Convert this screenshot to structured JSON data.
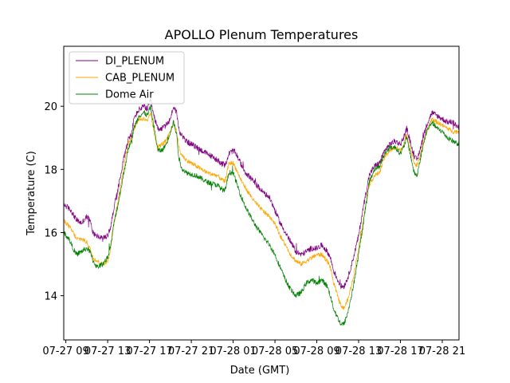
{
  "chart_data": {
    "type": "line",
    "title": "APOLLO Plenum Temperatures",
    "xlabel": "Date (GMT)",
    "ylabel": "Temperature (C)",
    "xlim": [
      8.8,
      46.6
    ],
    "ylim": [
      12.6,
      21.9
    ],
    "xticks": [
      {
        "x": 9,
        "label": "07-27 09"
      },
      {
        "x": 13,
        "label": "07-27 13"
      },
      {
        "x": 17,
        "label": "07-27 17"
      },
      {
        "x": 21,
        "label": "07-27 21"
      },
      {
        "x": 25,
        "label": "07-28 01"
      },
      {
        "x": 29,
        "label": "07-28 05"
      },
      {
        "x": 33,
        "label": "07-28 09"
      },
      {
        "x": 37,
        "label": "07-28 13"
      },
      {
        "x": 41,
        "label": "07-28 17"
      },
      {
        "x": 45,
        "label": "07-28 21"
      }
    ],
    "yticks": [
      {
        "y": 14,
        "label": "14"
      },
      {
        "y": 16,
        "label": "16"
      },
      {
        "y": 18,
        "label": "18"
      },
      {
        "y": 20,
        "label": "20"
      }
    ],
    "legend_position": "top-left",
    "series": [
      {
        "name": "DI_PLENUM",
        "color": "#800080",
        "noise": 0.09,
        "points": [
          [
            8.8,
            16.9
          ],
          [
            9.5,
            16.7
          ],
          [
            10.0,
            16.4
          ],
          [
            10.5,
            16.3
          ],
          [
            11.0,
            16.5
          ],
          [
            11.3,
            16.4
          ],
          [
            11.6,
            16.0
          ],
          [
            12.0,
            15.9
          ],
          [
            12.5,
            15.8
          ],
          [
            13.0,
            15.9
          ],
          [
            13.3,
            16.2
          ],
          [
            13.6,
            16.8
          ],
          [
            14.0,
            17.4
          ],
          [
            14.5,
            18.3
          ],
          [
            15.0,
            19.0
          ],
          [
            15.3,
            19.1
          ],
          [
            15.5,
            19.6
          ],
          [
            16.0,
            19.9
          ],
          [
            16.5,
            20.0
          ],
          [
            16.8,
            19.9
          ],
          [
            17.1,
            20.2
          ],
          [
            17.4,
            19.7
          ],
          [
            17.8,
            19.3
          ],
          [
            18.2,
            19.3
          ],
          [
            18.6,
            19.4
          ],
          [
            19.0,
            19.6
          ],
          [
            19.3,
            20.0
          ],
          [
            19.6,
            19.8
          ],
          [
            19.8,
            19.3
          ],
          [
            20.0,
            19.1
          ],
          [
            20.5,
            18.9
          ],
          [
            21.5,
            18.7
          ],
          [
            22.5,
            18.5
          ],
          [
            23.5,
            18.3
          ],
          [
            24.2,
            18.1
          ],
          [
            24.6,
            18.5
          ],
          [
            25.0,
            18.6
          ],
          [
            25.3,
            18.5
          ],
          [
            25.7,
            18.2
          ],
          [
            26.2,
            17.9
          ],
          [
            27.0,
            17.6
          ],
          [
            27.8,
            17.3
          ],
          [
            28.5,
            17.1
          ],
          [
            29.0,
            16.7
          ],
          [
            29.5,
            16.3
          ],
          [
            30.0,
            16.0
          ],
          [
            30.5,
            15.7
          ],
          [
            31.0,
            15.4
          ],
          [
            31.5,
            15.3
          ],
          [
            32.0,
            15.4
          ],
          [
            32.5,
            15.5
          ],
          [
            33.0,
            15.5
          ],
          [
            33.5,
            15.6
          ],
          [
            34.0,
            15.4
          ],
          [
            34.3,
            15.2
          ],
          [
            34.6,
            14.8
          ],
          [
            35.0,
            14.5
          ],
          [
            35.3,
            14.3
          ],
          [
            35.6,
            14.3
          ],
          [
            36.0,
            14.6
          ],
          [
            36.5,
            15.2
          ],
          [
            37.0,
            15.9
          ],
          [
            37.5,
            16.9
          ],
          [
            38.0,
            17.8
          ],
          [
            38.5,
            18.1
          ],
          [
            39.0,
            18.2
          ],
          [
            39.5,
            18.6
          ],
          [
            40.0,
            18.8
          ],
          [
            40.5,
            18.9
          ],
          [
            41.0,
            18.8
          ],
          [
            41.3,
            19.0
          ],
          [
            41.6,
            19.3
          ],
          [
            42.0,
            18.8
          ],
          [
            42.3,
            18.4
          ],
          [
            42.6,
            18.3
          ],
          [
            43.0,
            18.8
          ],
          [
            43.5,
            19.4
          ],
          [
            44.0,
            19.8
          ],
          [
            44.5,
            19.7
          ],
          [
            45.0,
            19.6
          ],
          [
            45.5,
            19.5
          ],
          [
            46.0,
            19.5
          ],
          [
            46.6,
            19.3
          ]
        ]
      },
      {
        "name": "CAB_PLENUM",
        "color": "#ffa500",
        "noise": 0.07,
        "points": [
          [
            8.8,
            16.4
          ],
          [
            9.3,
            16.2
          ],
          [
            9.7,
            16.0
          ],
          [
            10.0,
            15.8
          ],
          [
            10.5,
            15.8
          ],
          [
            11.0,
            15.7
          ],
          [
            11.3,
            15.5
          ],
          [
            11.6,
            15.2
          ],
          [
            12.0,
            15.1
          ],
          [
            12.5,
            15.0
          ],
          [
            13.0,
            15.1
          ],
          [
            13.3,
            15.5
          ],
          [
            13.6,
            16.3
          ],
          [
            14.0,
            17.0
          ],
          [
            14.5,
            18.0
          ],
          [
            15.0,
            18.9
          ],
          [
            15.3,
            19.0
          ],
          [
            15.5,
            19.3
          ],
          [
            16.0,
            19.6
          ],
          [
            16.5,
            19.6
          ],
          [
            16.8,
            19.5
          ],
          [
            17.1,
            19.8
          ],
          [
            17.4,
            19.2
          ],
          [
            17.8,
            18.7
          ],
          [
            18.2,
            18.8
          ],
          [
            18.6,
            18.9
          ],
          [
            19.0,
            19.2
          ],
          [
            19.3,
            19.5
          ],
          [
            19.6,
            19.2
          ],
          [
            19.8,
            18.7
          ],
          [
            20.0,
            18.5
          ],
          [
            20.5,
            18.3
          ],
          [
            21.5,
            18.1
          ],
          [
            22.5,
            17.9
          ],
          [
            23.5,
            17.8
          ],
          [
            24.2,
            17.6
          ],
          [
            24.6,
            18.2
          ],
          [
            25.0,
            18.2
          ],
          [
            25.3,
            18.0
          ],
          [
            25.7,
            17.7
          ],
          [
            26.2,
            17.4
          ],
          [
            27.0,
            17.0
          ],
          [
            27.8,
            16.7
          ],
          [
            28.5,
            16.5
          ],
          [
            29.0,
            16.3
          ],
          [
            29.5,
            15.9
          ],
          [
            30.0,
            15.6
          ],
          [
            30.5,
            15.3
          ],
          [
            31.0,
            15.1
          ],
          [
            31.5,
            15.0
          ],
          [
            32.0,
            15.1
          ],
          [
            32.5,
            15.2
          ],
          [
            33.0,
            15.3
          ],
          [
            33.5,
            15.3
          ],
          [
            34.0,
            15.1
          ],
          [
            34.3,
            14.9
          ],
          [
            34.6,
            14.4
          ],
          [
            35.0,
            14.0
          ],
          [
            35.3,
            13.7
          ],
          [
            35.6,
            13.6
          ],
          [
            36.0,
            13.9
          ],
          [
            36.5,
            14.6
          ],
          [
            37.0,
            15.5
          ],
          [
            37.5,
            16.5
          ],
          [
            38.0,
            17.5
          ],
          [
            38.5,
            17.8
          ],
          [
            39.0,
            17.9
          ],
          [
            39.5,
            18.4
          ],
          [
            40.0,
            18.6
          ],
          [
            40.5,
            18.7
          ],
          [
            41.0,
            18.6
          ],
          [
            41.3,
            18.8
          ],
          [
            41.6,
            19.1
          ],
          [
            42.0,
            18.6
          ],
          [
            42.3,
            18.2
          ],
          [
            42.6,
            18.1
          ],
          [
            43.0,
            18.6
          ],
          [
            43.5,
            19.2
          ],
          [
            44.0,
            19.6
          ],
          [
            44.5,
            19.5
          ],
          [
            45.0,
            19.4
          ],
          [
            45.5,
            19.3
          ],
          [
            46.0,
            19.2
          ],
          [
            46.6,
            19.2
          ]
        ]
      },
      {
        "name": "Dome Air",
        "color": "#008000",
        "noise": 0.08,
        "points": [
          [
            8.8,
            16.0
          ],
          [
            9.3,
            15.8
          ],
          [
            9.7,
            15.5
          ],
          [
            10.0,
            15.3
          ],
          [
            10.5,
            15.4
          ],
          [
            11.0,
            15.5
          ],
          [
            11.3,
            15.4
          ],
          [
            11.6,
            15.1
          ],
          [
            12.0,
            14.9
          ],
          [
            12.5,
            15.0
          ],
          [
            13.0,
            15.2
          ],
          [
            13.3,
            15.6
          ],
          [
            13.6,
            16.3
          ],
          [
            14.0,
            16.9
          ],
          [
            14.5,
            17.8
          ],
          [
            15.0,
            18.7
          ],
          [
            15.3,
            18.9
          ],
          [
            15.5,
            19.3
          ],
          [
            16.0,
            19.7
          ],
          [
            16.5,
            19.8
          ],
          [
            16.8,
            19.7
          ],
          [
            17.1,
            20.0
          ],
          [
            17.4,
            19.4
          ],
          [
            17.8,
            18.6
          ],
          [
            18.2,
            18.6
          ],
          [
            18.6,
            18.8
          ],
          [
            19.0,
            19.2
          ],
          [
            19.3,
            19.5
          ],
          [
            19.6,
            19.1
          ],
          [
            19.8,
            18.4
          ],
          [
            20.0,
            18.1
          ],
          [
            20.5,
            17.9
          ],
          [
            21.5,
            17.8
          ],
          [
            22.5,
            17.6
          ],
          [
            23.5,
            17.5
          ],
          [
            24.2,
            17.3
          ],
          [
            24.6,
            17.9
          ],
          [
            25.0,
            17.9
          ],
          [
            25.3,
            17.6
          ],
          [
            25.7,
            17.2
          ],
          [
            26.2,
            16.8
          ],
          [
            27.0,
            16.3
          ],
          [
            27.8,
            15.9
          ],
          [
            28.5,
            15.6
          ],
          [
            29.0,
            15.3
          ],
          [
            29.5,
            14.9
          ],
          [
            30.0,
            14.5
          ],
          [
            30.5,
            14.2
          ],
          [
            31.0,
            14.0
          ],
          [
            31.5,
            14.1
          ],
          [
            32.0,
            14.4
          ],
          [
            32.5,
            14.5
          ],
          [
            33.0,
            14.4
          ],
          [
            33.5,
            14.5
          ],
          [
            34.0,
            14.3
          ],
          [
            34.3,
            14.0
          ],
          [
            34.6,
            13.6
          ],
          [
            35.0,
            13.3
          ],
          [
            35.3,
            13.1
          ],
          [
            35.6,
            13.1
          ],
          [
            36.0,
            13.5
          ],
          [
            36.5,
            14.3
          ],
          [
            37.0,
            15.3
          ],
          [
            37.5,
            16.4
          ],
          [
            38.0,
            17.6
          ],
          [
            38.5,
            18.0
          ],
          [
            39.0,
            18.1
          ],
          [
            39.5,
            18.5
          ],
          [
            40.0,
            18.7
          ],
          [
            40.5,
            18.7
          ],
          [
            41.0,
            18.5
          ],
          [
            41.3,
            18.7
          ],
          [
            41.6,
            19.0
          ],
          [
            42.0,
            18.4
          ],
          [
            42.3,
            17.9
          ],
          [
            42.6,
            17.8
          ],
          [
            43.0,
            18.5
          ],
          [
            43.5,
            19.2
          ],
          [
            44.0,
            19.5
          ],
          [
            44.5,
            19.3
          ],
          [
            45.0,
            19.2
          ],
          [
            45.5,
            19.0
          ],
          [
            46.0,
            18.9
          ],
          [
            46.6,
            18.8
          ]
        ]
      }
    ]
  }
}
